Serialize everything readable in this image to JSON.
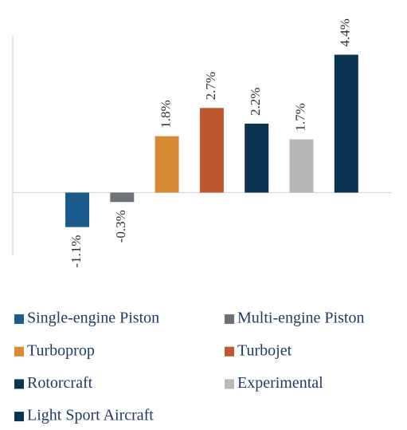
{
  "chart_data": {
    "type": "bar",
    "categories": [
      "Single-engine Piston",
      "Multi-engine Piston",
      "Turboprop",
      "Turbojet",
      "Rotorcraft",
      "Experimental",
      "Light Sport Aircraft"
    ],
    "values": [
      -1.1,
      -0.3,
      1.8,
      2.7,
      2.2,
      1.7,
      4.4
    ],
    "value_labels": [
      "-1.1%",
      "-0.3%",
      "1.8%",
      "2.7%",
      "2.2%",
      "1.7%",
      "4.4%"
    ],
    "colors": [
      "#1b5b8c",
      "#6d7378",
      "#d98a35",
      "#c0582f",
      "#0b3352",
      "#b8b8b8",
      "#0b3352"
    ],
    "ylim": [
      -2,
      5
    ]
  }
}
